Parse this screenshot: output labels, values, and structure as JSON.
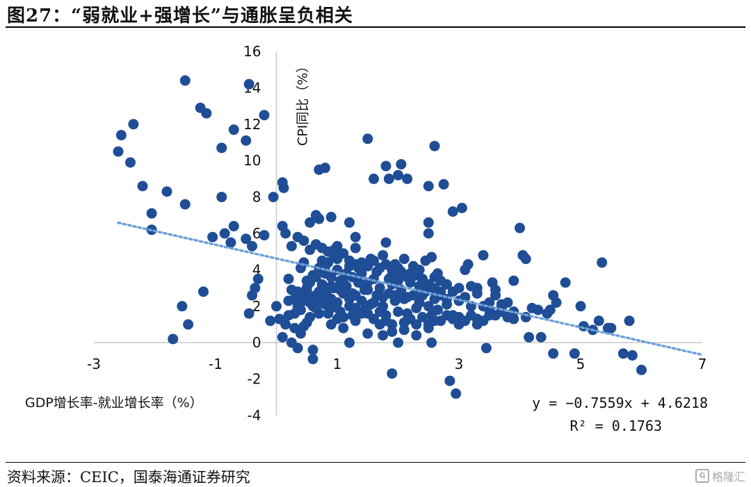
{
  "header": {
    "title": "图27：“弱就业+强增长”与通胀呈负相关"
  },
  "footer": {
    "source": "资料来源：CEIC，国泰海通证券研究",
    "watermark_text": "格隆汇",
    "watermark_icon": "gelonghui-logo-icon"
  },
  "chart_data": {
    "type": "scatter",
    "xlabel": "GDP增长率-就业增长率（%）",
    "ylabel": "CPI同比（%）",
    "xlim": [
      -3,
      7
    ],
    "ylim": [
      -4,
      16
    ],
    "x_ticks": [
      "-3",
      "-1",
      "1",
      "3",
      "5",
      "7"
    ],
    "y_ticks": [
      "-4",
      "-2",
      "0",
      "2",
      "4",
      "6",
      "8",
      "10",
      "12",
      "14",
      "16"
    ],
    "grid": false,
    "marker_color": "#1f4e96",
    "trendline_color": "#6ea0d8",
    "trendline": {
      "equation": "y = −0.7559x + 4.6218",
      "r_squared": "R² = 0.1763",
      "slope": -0.7559,
      "intercept": 4.6218,
      "x_range": [
        -2.6,
        7.0
      ]
    },
    "points": [
      [
        -2.6,
        10.5
      ],
      [
        -2.55,
        11.4
      ],
      [
        -2.35,
        12.0
      ],
      [
        -2.4,
        9.9
      ],
      [
        -2.2,
        8.6
      ],
      [
        -2.05,
        7.1
      ],
      [
        -2.05,
        6.2
      ],
      [
        -1.8,
        8.3
      ],
      [
        -1.5,
        14.4
      ],
      [
        -1.5,
        7.6
      ],
      [
        -1.25,
        12.9
      ],
      [
        -1.15,
        12.6
      ],
      [
        -0.9,
        10.7
      ],
      [
        -0.9,
        8.0
      ],
      [
        -0.7,
        11.7
      ],
      [
        -0.5,
        11.1
      ],
      [
        -0.45,
        14.2
      ],
      [
        -0.2,
        12.5
      ],
      [
        -0.05,
        8.0
      ],
      [
        0.1,
        8.8
      ],
      [
        0.12,
        8.5
      ],
      [
        -1.55,
        2.0
      ],
      [
        -1.45,
        1.0
      ],
      [
        -1.7,
        0.2
      ],
      [
        -1.2,
        2.8
      ],
      [
        -1.05,
        5.8
      ],
      [
        -0.85,
        6.0
      ],
      [
        -0.75,
        5.5
      ],
      [
        -0.7,
        6.4
      ],
      [
        -0.5,
        5.7
      ],
      [
        -0.4,
        5.3
      ],
      [
        -0.3,
        3.5
      ],
      [
        -0.35,
        3.0
      ],
      [
        -0.4,
        2.6
      ],
      [
        -0.45,
        1.6
      ],
      [
        -0.2,
        5.9
      ],
      [
        -0.1,
        1.2
      ],
      [
        0.0,
        2.0
      ],
      [
        0.05,
        1.3
      ],
      [
        0.1,
        0.3
      ],
      [
        0.2,
        1.5
      ],
      [
        0.25,
        0.0
      ],
      [
        0.3,
        0.8
      ],
      [
        0.35,
        -0.3
      ],
      [
        0.45,
        0.9
      ],
      [
        0.55,
        1.4
      ],
      [
        0.6,
        -0.9
      ],
      [
        0.6,
        -0.4
      ],
      [
        0.7,
        9.5
      ],
      [
        0.8,
        9.6
      ],
      [
        0.9,
        6.9
      ],
      [
        0.7,
        6.8
      ],
      [
        0.75,
        5.2
      ],
      [
        0.85,
        5.0
      ],
      [
        0.95,
        4.7
      ],
      [
        1.0,
        5.3
      ],
      [
        1.1,
        4.9
      ],
      [
        1.2,
        6.6
      ],
      [
        1.3,
        5.8
      ],
      [
        1.45,
        3.1
      ],
      [
        1.5,
        11.2
      ],
      [
        1.6,
        9.0
      ],
      [
        1.8,
        9.7
      ],
      [
        1.85,
        9.0
      ],
      [
        2.05,
        9.8
      ],
      [
        2.0,
        9.2
      ],
      [
        2.15,
        9.0
      ],
      [
        2.35,
        3.1
      ],
      [
        2.5,
        8.6
      ],
      [
        2.6,
        10.8
      ],
      [
        2.75,
        8.7
      ],
      [
        2.9,
        7.2
      ],
      [
        3.05,
        7.4
      ],
      [
        2.5,
        6.6
      ],
      [
        2.5,
        6.0
      ],
      [
        2.6,
        3.6
      ],
      [
        2.7,
        2.8
      ],
      [
        2.8,
        2.1
      ],
      [
        2.9,
        1.5
      ],
      [
        3.0,
        1.0
      ],
      [
        3.1,
        4.0
      ],
      [
        3.15,
        4.3
      ],
      [
        3.3,
        3.0
      ],
      [
        3.4,
        4.8
      ],
      [
        3.55,
        3.3
      ],
      [
        3.6,
        2.6
      ],
      [
        3.7,
        1.9
      ],
      [
        3.8,
        1.4
      ],
      [
        3.9,
        3.4
      ],
      [
        4.0,
        6.3
      ],
      [
        4.05,
        4.8
      ],
      [
        4.1,
        4.6
      ],
      [
        4.15,
        0.3
      ],
      [
        4.3,
        1.8
      ],
      [
        4.35,
        0.3
      ],
      [
        4.45,
        1.6
      ],
      [
        4.55,
        2.6
      ],
      [
        4.6,
        2.2
      ],
      [
        4.75,
        3.3
      ],
      [
        4.55,
        -0.6
      ],
      [
        4.9,
        -0.6
      ],
      [
        5.0,
        2.0
      ],
      [
        5.05,
        0.9
      ],
      [
        5.2,
        0.7
      ],
      [
        5.3,
        1.2
      ],
      [
        5.5,
        0.8
      ],
      [
        5.7,
        -0.6
      ],
      [
        5.85,
        -0.7
      ],
      [
        6.0,
        -1.5
      ],
      [
        5.35,
        4.4
      ],
      [
        5.45,
        0.8
      ],
      [
        5.8,
        1.2
      ],
      [
        1.2,
        0.0
      ],
      [
        1.75,
        0.4
      ],
      [
        1.9,
        -1.7
      ],
      [
        2.0,
        0.0
      ],
      [
        2.55,
        0.0
      ],
      [
        2.85,
        -2.1
      ],
      [
        2.95,
        -2.8
      ],
      [
        3.45,
        -0.3
      ],
      [
        0.1,
        6.4
      ],
      [
        0.15,
        6.0
      ],
      [
        0.25,
        5.3
      ],
      [
        0.35,
        5.8
      ],
      [
        0.45,
        5.6
      ],
      [
        0.55,
        5.1
      ],
      [
        0.55,
        6.6
      ],
      [
        0.65,
        7.0
      ],
      [
        0.65,
        5.4
      ],
      [
        0.75,
        4.5
      ],
      [
        0.8,
        3.8
      ],
      [
        0.9,
        3.6
      ],
      [
        1.0,
        4.0
      ],
      [
        1.05,
        3.4
      ],
      [
        1.15,
        3.8
      ],
      [
        1.25,
        3.6
      ],
      [
        1.35,
        4.1
      ],
      [
        1.4,
        4.4
      ],
      [
        1.5,
        3.3
      ],
      [
        1.55,
        4.6
      ],
      [
        1.65,
        3.9
      ],
      [
        1.75,
        4.8
      ],
      [
        1.85,
        3.5
      ],
      [
        1.95,
        4.3
      ],
      [
        2.05,
        3.9
      ],
      [
        2.15,
        3.6
      ],
      [
        2.25,
        4.2
      ],
      [
        2.35,
        4.0
      ],
      [
        2.45,
        4.5
      ],
      [
        2.55,
        4.7
      ],
      [
        2.65,
        3.8
      ],
      [
        1.8,
        5.5
      ],
      [
        2.1,
        4.6
      ],
      [
        1.3,
        5.2
      ],
      [
        0.95,
        5.1
      ],
      [
        0.85,
        4.4
      ],
      [
        0.4,
        4.1
      ],
      [
        0.5,
        3.4
      ],
      [
        0.2,
        3.5
      ],
      [
        0.25,
        2.9
      ],
      [
        0.3,
        2.4
      ],
      [
        0.35,
        2.0
      ],
      [
        0.4,
        1.8
      ],
      [
        0.45,
        2.6
      ],
      [
        0.5,
        3.0
      ],
      [
        0.55,
        2.2
      ],
      [
        0.6,
        2.5
      ],
      [
        0.65,
        1.9
      ],
      [
        0.7,
        2.8
      ],
      [
        0.75,
        3.2
      ],
      [
        0.8,
        2.1
      ],
      [
        0.85,
        1.6
      ],
      [
        0.9,
        2.4
      ],
      [
        0.95,
        3.0
      ],
      [
        1.0,
        2.2
      ],
      [
        1.05,
        1.7
      ],
      [
        1.1,
        2.7
      ],
      [
        1.15,
        3.1
      ],
      [
        1.2,
        2.0
      ],
      [
        1.25,
        1.5
      ],
      [
        1.3,
        2.6
      ],
      [
        1.35,
        3.3
      ],
      [
        1.4,
        2.3
      ],
      [
        1.45,
        1.8
      ],
      [
        1.5,
        2.9
      ],
      [
        1.55,
        2.1
      ],
      [
        1.6,
        1.3
      ],
      [
        1.65,
        2.6
      ],
      [
        1.7,
        3.0
      ],
      [
        1.75,
        2.0
      ],
      [
        1.8,
        1.5
      ],
      [
        1.85,
        2.7
      ],
      [
        1.9,
        3.2
      ],
      [
        1.95,
        2.3
      ],
      [
        2.0,
        1.7
      ],
      [
        2.05,
        2.9
      ],
      [
        2.1,
        2.4
      ],
      [
        2.15,
        1.6
      ],
      [
        2.2,
        3.3
      ],
      [
        2.25,
        2.6
      ],
      [
        2.3,
        1.9
      ],
      [
        2.35,
        2.2
      ],
      [
        2.4,
        1.4
      ],
      [
        2.45,
        2.8
      ],
      [
        2.5,
        2.0
      ],
      [
        2.55,
        1.5
      ],
      [
        2.6,
        2.4
      ],
      [
        2.65,
        1.8
      ],
      [
        0.45,
        4.4
      ],
      [
        0.6,
        3.7
      ],
      [
        0.7,
        4.1
      ],
      [
        0.9,
        3.1
      ],
      [
        1.1,
        3.5
      ],
      [
        1.2,
        4.2
      ],
      [
        1.4,
        3.8
      ],
      [
        1.6,
        3.5
      ],
      [
        1.7,
        4.1
      ],
      [
        1.9,
        3.7
      ],
      [
        2.0,
        3.4
      ],
      [
        2.2,
        3.8
      ],
      [
        2.4,
        3.2
      ],
      [
        0.6,
        2.0
      ],
      [
        0.8,
        2.6
      ],
      [
        1.0,
        1.3
      ],
      [
        1.2,
        2.4
      ],
      [
        1.4,
        1.6
      ],
      [
        1.6,
        2.2
      ],
      [
        1.8,
        1.2
      ],
      [
        2.0,
        2.5
      ],
      [
        2.2,
        1.3
      ],
      [
        2.4,
        2.6
      ],
      [
        2.6,
        1.2
      ],
      [
        0.5,
        2.8
      ],
      [
        0.7,
        2.2
      ],
      [
        0.9,
        1.9
      ],
      [
        1.1,
        1.4
      ],
      [
        1.3,
        1.9
      ],
      [
        1.5,
        1.6
      ],
      [
        1.7,
        1.7
      ],
      [
        1.9,
        1.0
      ],
      [
        2.1,
        1.1
      ],
      [
        2.3,
        1.0
      ],
      [
        2.5,
        0.8
      ],
      [
        2.7,
        1.2
      ],
      [
        2.8,
        1.5
      ],
      [
        2.9,
        1.3
      ],
      [
        3.0,
        1.4
      ],
      [
        3.1,
        1.2
      ],
      [
        3.2,
        1.5
      ],
      [
        3.3,
        1.3
      ],
      [
        3.4,
        1.2
      ],
      [
        3.6,
        1.5
      ],
      [
        3.7,
        1.7
      ],
      [
        3.9,
        1.7
      ],
      [
        4.1,
        1.4
      ],
      [
        2.7,
        3.4
      ],
      [
        2.8,
        3.2
      ],
      [
        2.9,
        2.8
      ],
      [
        3.0,
        3.0
      ],
      [
        3.1,
        2.5
      ],
      [
        3.2,
        3.1
      ],
      [
        3.3,
        2.7
      ],
      [
        3.5,
        2.2
      ],
      [
        3.6,
        2.9
      ],
      [
        3.8,
        2.2
      ],
      [
        0.3,
        1.6
      ],
      [
        0.5,
        1.1
      ],
      [
        0.7,
        1.6
      ],
      [
        0.9,
        1.0
      ],
      [
        1.1,
        0.8
      ],
      [
        1.3,
        1.2
      ],
      [
        1.5,
        0.5
      ],
      [
        1.7,
        1.0
      ],
      [
        1.9,
        0.6
      ],
      [
        2.1,
        0.7
      ],
      [
        2.3,
        0.4
      ],
      [
        2.5,
        1.0
      ],
      [
        0.15,
        1.0
      ],
      [
        0.4,
        0.5
      ],
      [
        0.2,
        2.3
      ],
      [
        0.35,
        2.8
      ],
      [
        0.55,
        3.3
      ],
      [
        0.65,
        3.6
      ],
      [
        0.8,
        4.0
      ],
      [
        1.0,
        4.6
      ],
      [
        1.2,
        4.5
      ],
      [
        1.3,
        4.3
      ],
      [
        1.5,
        4.2
      ],
      [
        1.6,
        4.5
      ],
      [
        1.8,
        4.3
      ],
      [
        1.9,
        4.0
      ],
      [
        2.0,
        4.1
      ],
      [
        2.2,
        3.5
      ],
      [
        2.3,
        3.7
      ],
      [
        2.4,
        3.5
      ],
      [
        2.5,
        3.2
      ],
      [
        2.6,
        3.0
      ],
      [
        2.7,
        2.6
      ],
      [
        2.8,
        2.4
      ],
      [
        3.0,
        2.3
      ],
      [
        3.2,
        2.0
      ],
      [
        3.4,
        2.0
      ],
      [
        3.5,
        1.8
      ],
      [
        3.7,
        2.1
      ],
      [
        3.3,
        1.0
      ],
      [
        3.5,
        1.5
      ],
      [
        3.9,
        1.3
      ],
      [
        4.2,
        1.9
      ],
      [
        4.5,
        1.8
      ],
      [
        1.45,
        2.9
      ],
      [
        1.25,
        2.7
      ],
      [
        1.05,
        2.9
      ],
      [
        0.85,
        2.9
      ],
      [
        0.65,
        2.6
      ],
      [
        0.45,
        2.3
      ],
      [
        1.75,
        2.5
      ],
      [
        1.95,
        2.6
      ],
      [
        2.15,
        2.5
      ],
      [
        2.35,
        2.8
      ],
      [
        2.55,
        2.9
      ]
    ]
  }
}
